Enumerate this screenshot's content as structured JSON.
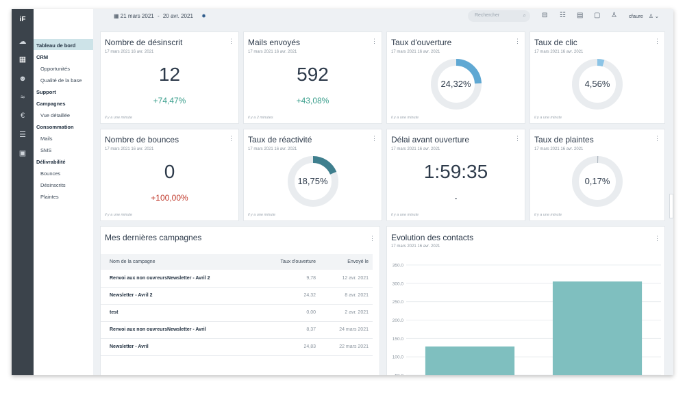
{
  "app": {
    "logo": "iF"
  },
  "rail": [
    {
      "name": "cloud-icon",
      "glyph": "☁"
    },
    {
      "name": "building-icon",
      "glyph": "▦"
    },
    {
      "name": "users-icon",
      "glyph": "☻"
    },
    {
      "name": "handshake-icon",
      "glyph": "≈"
    },
    {
      "name": "euro-icon",
      "glyph": "€"
    },
    {
      "name": "list-icon",
      "glyph": "☰"
    },
    {
      "name": "truck-icon",
      "glyph": "▣"
    }
  ],
  "nav": {
    "dashboard": "Tableau de bord",
    "crm": "CRM",
    "opportunites": "Opportunités",
    "qualite": "Qualité de la base",
    "support": "Support",
    "campagnes": "Campagnes",
    "vue": "Vue détaillée",
    "consommation": "Consommation",
    "mails": "Mails",
    "sms": "SMS",
    "delivrabilite": "Délivrabilité",
    "bounces": "Bounces",
    "desinscrits": "Désinscrits",
    "plaintes": "Plaintes"
  },
  "topbar": {
    "date_from": "21 mars 2021",
    "date_sep": "-",
    "date_to": "20 avr. 2021",
    "search_placeholder": "Rechercher",
    "user": "cfaure"
  },
  "cards": {
    "desinscrit": {
      "title": "Nombre de désinscrit",
      "date": "17 mars 2021 16 avr. 2021",
      "value": "12",
      "delta": "+74,47%",
      "foot": "il y a une minute"
    },
    "mails": {
      "title": "Mails envoyés",
      "date": "17 mars 2021 16 avr. 2021",
      "value": "592",
      "delta": "+43,08%",
      "foot": "il y a 2 minutes"
    },
    "ouverture": {
      "title": "Taux d'ouverture",
      "date": "17 mars 2021 16 avr. 2021",
      "value": "24,32%",
      "pct": 24.32,
      "foot": "il y a une minute"
    },
    "clic": {
      "title": "Taux de clic",
      "date": "17 mars 2021 16 avr. 2021",
      "value": "4,56%",
      "pct": 4.56,
      "foot": "il y a une minute"
    },
    "bounces": {
      "title": "Nombre de bounces",
      "date": "17 mars 2021 16 avr. 2021",
      "value": "0",
      "delta": "+100,00%",
      "foot": "il y a une minute"
    },
    "reactivite": {
      "title": "Taux de réactivité",
      "date": "17 mars 2021 16 avr. 2021",
      "value": "18,75%",
      "pct": 18.75,
      "foot": "il y a une minute"
    },
    "delai": {
      "title": "Délai avant ouverture",
      "date": "17 mars 2021 16 avr. 2021",
      "value": "1:59:35",
      "delta": "-",
      "foot": "il y a une minute"
    },
    "plaintes": {
      "title": "Taux de plaintes",
      "date": "17 mars 2021 16 avr. 2021",
      "value": "0,17%",
      "pct": 0.17,
      "foot": "il y a une minute"
    }
  },
  "colors": {
    "positive": "#3a9e8c",
    "negative": "#c0392b",
    "donut_track": "#e9ecef",
    "donut_blue": "#5fa8d3",
    "donut_light": "#8cc4e6",
    "donut_teal": "#3f7f8e",
    "donut_grey": "#aeb6bf",
    "bar": "#7fbfbf"
  },
  "campaigns": {
    "title": "Mes dernières campagnes",
    "headers": {
      "name": "Nom de la campagne",
      "rate": "Taux d'ouverture",
      "sent": "Envoyé le"
    },
    "rows": [
      {
        "name": "Renvoi aux non ouvreursNewsletter - Avril 2",
        "rate": "9,78",
        "sent": "12 avr. 2021"
      },
      {
        "name": "Newsletter - Avril 2",
        "rate": "24,32",
        "sent": "8 avr. 2021"
      },
      {
        "name": "test",
        "rate": "0,00",
        "sent": "2 avr. 2021"
      },
      {
        "name": "Renvoi aux non ouvreursNewsletter - Avril",
        "rate": "8,37",
        "sent": "24 mars 2021"
      },
      {
        "name": "Newsletter - Avril",
        "rate": "24,83",
        "sent": "22 mars 2021"
      }
    ]
  },
  "evolution": {
    "title": "Evolution des contacts",
    "date": "17 mars 2021 16 avr. 2021"
  },
  "chart_data": {
    "type": "bar",
    "categories": [
      "",
      ""
    ],
    "values": [
      128,
      305
    ],
    "ylim": [
      50,
      350
    ],
    "yticks": [
      "350.0",
      "300.0",
      "250.0",
      "200.0",
      "150.0",
      "100.0",
      "50.0"
    ],
    "ytick_values": [
      350,
      300,
      250,
      200,
      150,
      100,
      50
    ],
    "grid": true
  }
}
